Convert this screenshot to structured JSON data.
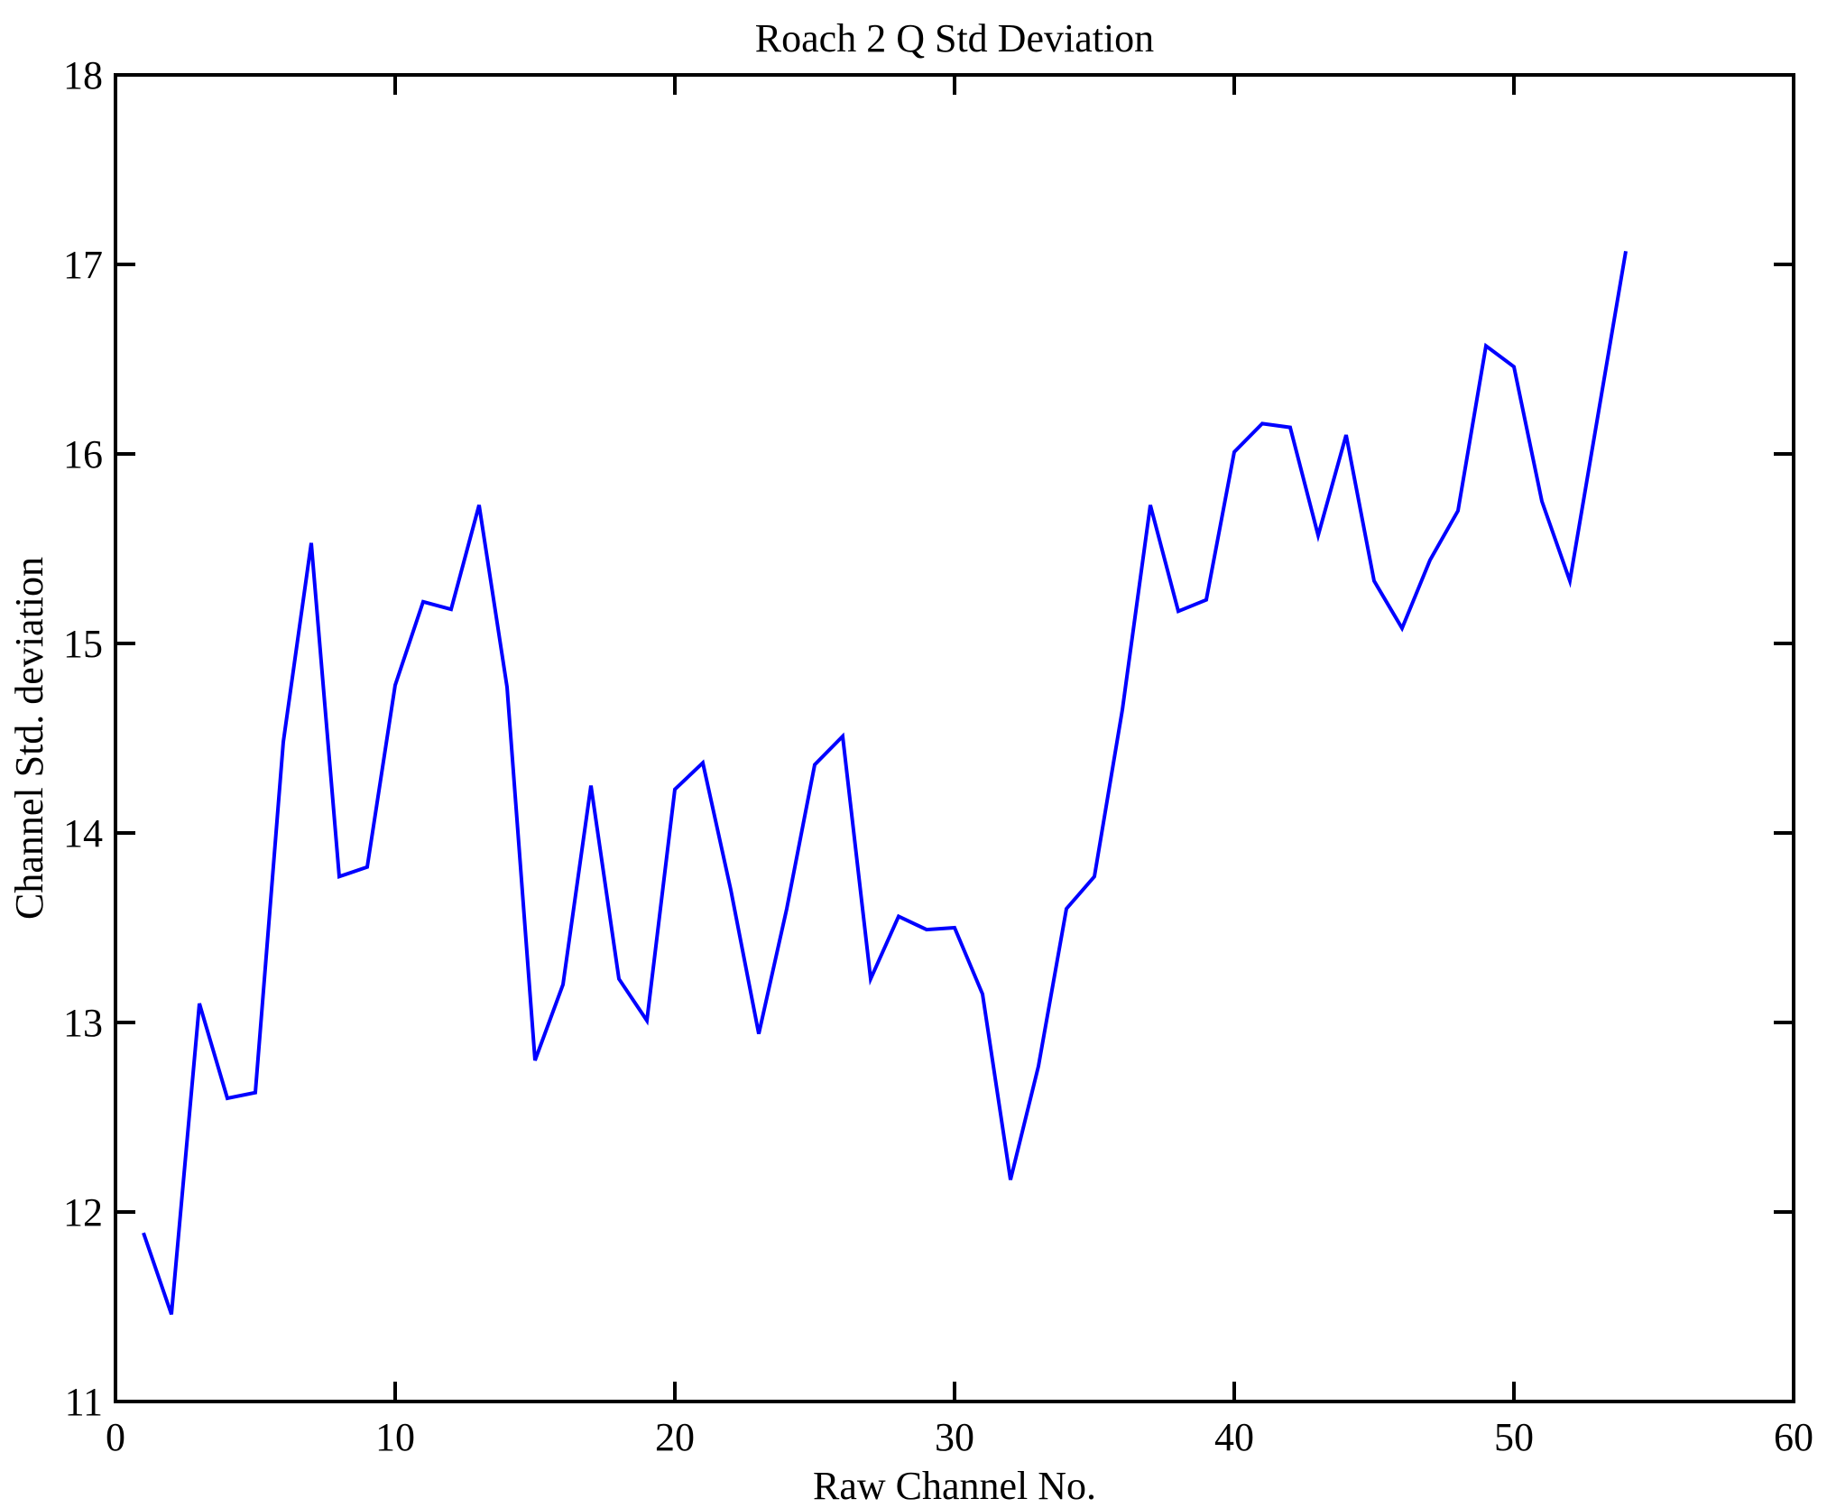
{
  "figure": {
    "title": "Roach 2 Q Std Deviation",
    "xlabel": "Raw Channel No.",
    "ylabel": "Channel Std. deviation"
  },
  "chart_data": {
    "type": "line",
    "title": "Roach 2 Q Std Deviation",
    "xlabel": "Raw Channel No.",
    "ylabel": "Channel Std. deviation",
    "x": [
      1,
      2,
      3,
      4,
      5,
      6,
      7,
      8,
      9,
      10,
      11,
      12,
      13,
      14,
      15,
      16,
      17,
      18,
      19,
      20,
      21,
      22,
      23,
      24,
      25,
      26,
      27,
      28,
      29,
      30,
      31,
      32,
      33,
      34,
      35,
      36,
      37,
      38,
      39,
      40,
      41,
      42,
      43,
      44,
      45,
      46,
      47,
      48,
      49,
      50,
      51,
      52,
      53,
      54
    ],
    "values": [
      11.89,
      11.46,
      13.1,
      12.6,
      12.63,
      14.48,
      15.53,
      13.77,
      13.82,
      14.78,
      15.22,
      15.18,
      15.73,
      14.77,
      12.8,
      13.2,
      14.25,
      13.23,
      13.01,
      14.23,
      14.37,
      13.7,
      12.94,
      13.6,
      14.36,
      14.51,
      13.23,
      13.56,
      13.49,
      13.5,
      13.15,
      12.17,
      12.77,
      13.6,
      13.77,
      14.65,
      15.73,
      15.17,
      15.23,
      16.01,
      16.16,
      16.14,
      15.57,
      16.1,
      15.33,
      15.08,
      15.44,
      15.7,
      16.57,
      16.46,
      15.75,
      15.33,
      16.2,
      17.07
    ],
    "xlim": [
      0,
      60
    ],
    "ylim": [
      11,
      18
    ],
    "xticks": [
      0,
      10,
      20,
      30,
      40,
      50,
      60
    ],
    "yticks": [
      11,
      12,
      13,
      14,
      15,
      16,
      17,
      18
    ],
    "grid": false,
    "line_color": "#0000ff",
    "axis_color": "#000000",
    "background": "#ffffff"
  }
}
